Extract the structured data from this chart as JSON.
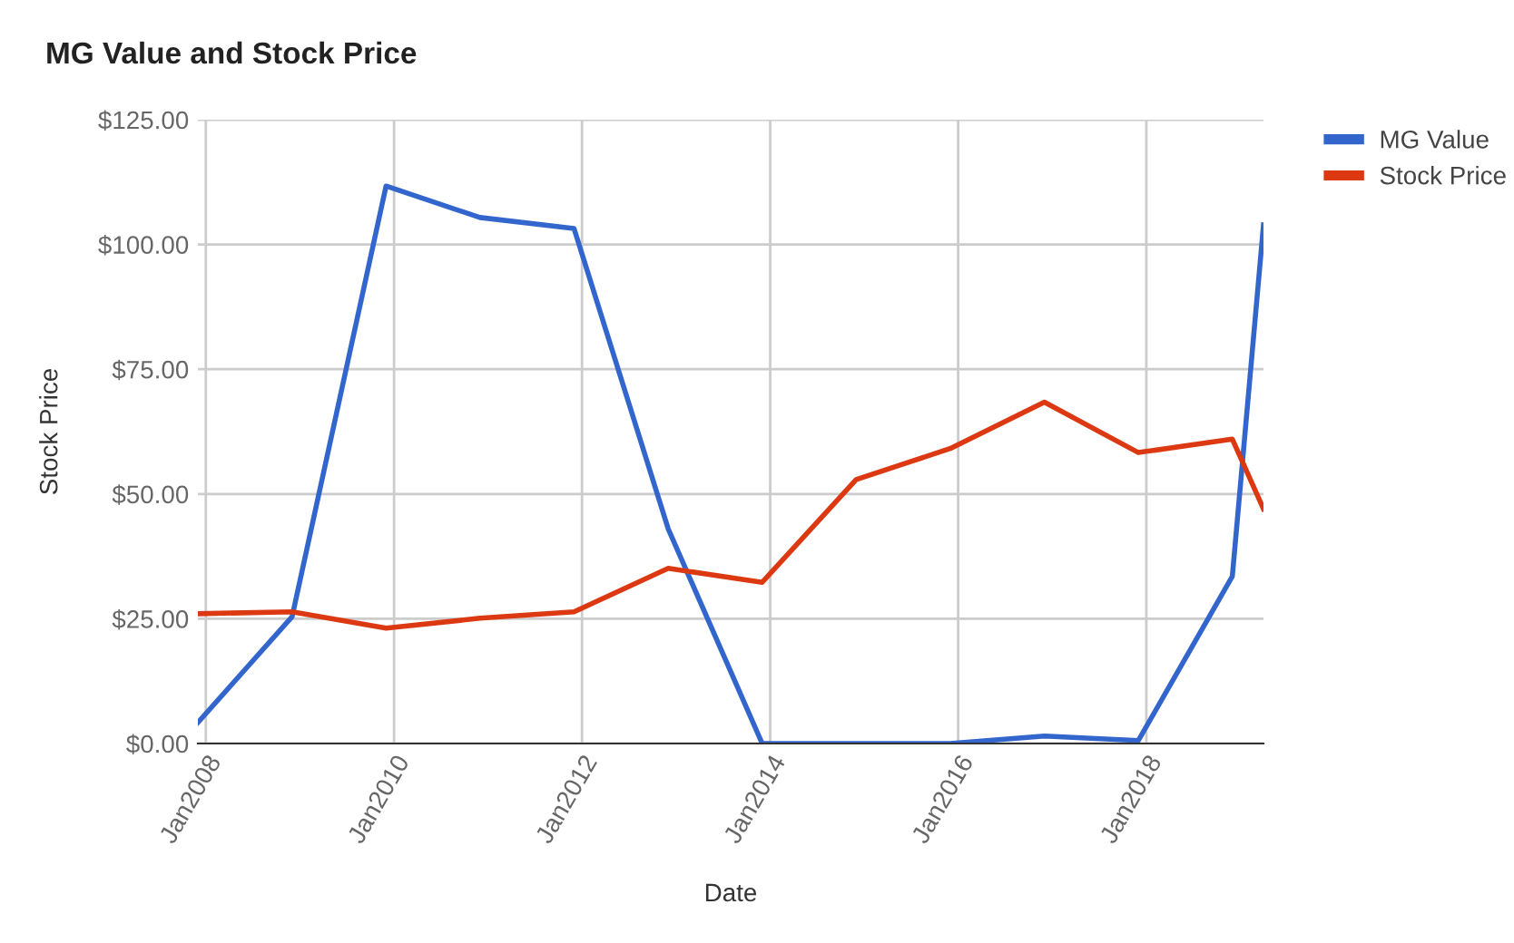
{
  "chart_data": {
    "type": "line",
    "title": "MG Value and Stock Price",
    "xlabel": "Date",
    "ylabel": "Stock Price",
    "x": [
      "2007-12",
      "2008-12",
      "2009-12",
      "2010-12",
      "2011-12",
      "2012-12",
      "2013-12",
      "2014-12",
      "2015-12",
      "2016-12",
      "2017-12",
      "2018-12",
      "2019-04"
    ],
    "series": [
      {
        "name": "MG Value",
        "color": "#3366cc",
        "values": [
          4.2,
          25.4,
          111.7,
          105.4,
          103.2,
          43,
          0,
          0,
          0,
          1.5,
          0.6,
          33.5,
          103.9
        ]
      },
      {
        "name": "Stock Price",
        "color": "#dc3912",
        "values": [
          26.0,
          26.4,
          23.1,
          25.1,
          26.4,
          35.1,
          32.3,
          52.9,
          59.1,
          68.4,
          58.3,
          61.0,
          47.0
        ]
      }
    ],
    "xlim": [
      "2007-12",
      "2019-04"
    ],
    "xticks": [
      {
        "value": "2008-01",
        "label": "Jan2008"
      },
      {
        "value": "2010-01",
        "label": "Jan2010"
      },
      {
        "value": "2012-01",
        "label": "Jan2012"
      },
      {
        "value": "2014-01",
        "label": "Jan2014"
      },
      {
        "value": "2016-01",
        "label": "Jan2016"
      },
      {
        "value": "2018-01",
        "label": "Jan2018"
      }
    ],
    "ylim": [
      0,
      125
    ],
    "yticks": [
      {
        "value": 0,
        "label": "$0.00"
      },
      {
        "value": 25,
        "label": "$25.00"
      },
      {
        "value": 50,
        "label": "$50.00"
      },
      {
        "value": 75,
        "label": "$75.00"
      },
      {
        "value": 100,
        "label": "$100.00"
      },
      {
        "value": 125,
        "label": "$125.00"
      }
    ],
    "grid": true,
    "legend": "top right",
    "marker": "none",
    "line_style": "solid"
  }
}
